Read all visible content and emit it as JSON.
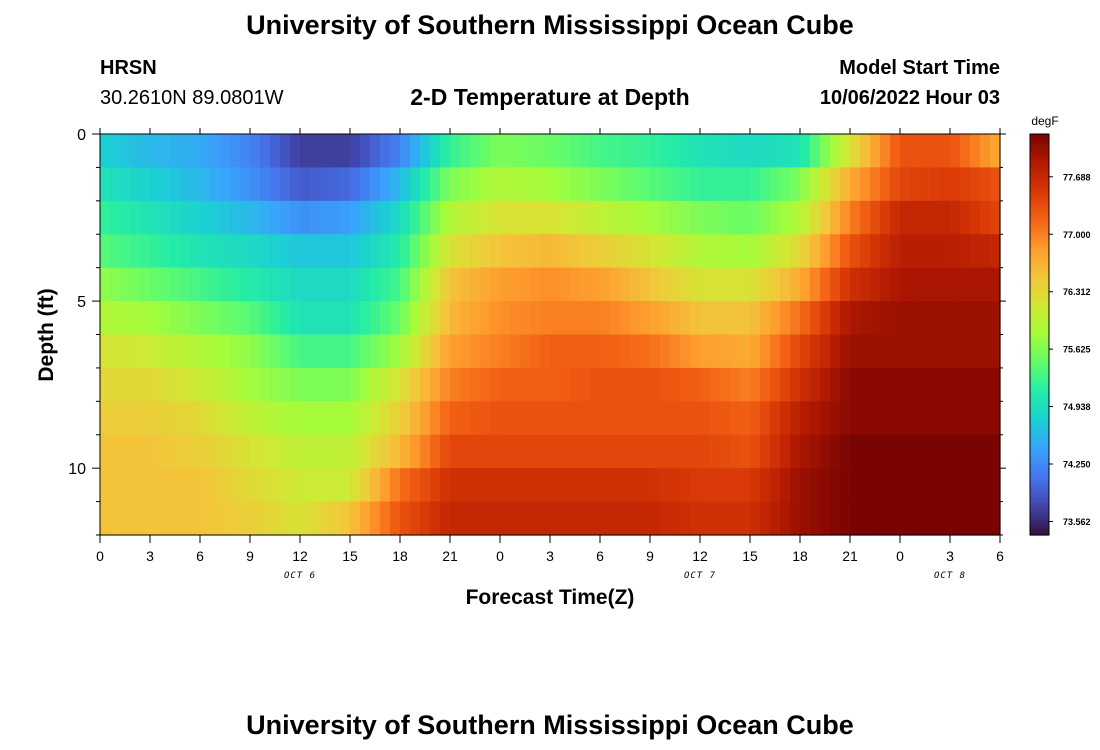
{
  "header": {
    "title": "University of Southern Mississippi Ocean Cube",
    "station": "HRSN",
    "location": "30.2610N  89.0801W",
    "subtitle": "2-D Temperature at Depth",
    "model_start_label": "Model Start Time",
    "model_start_value": "10/06/2022 Hour 03"
  },
  "footer": {
    "title": "University of Southern Mississippi Ocean Cube"
  },
  "chart_data": {
    "type": "heatmap",
    "title": "2-D Temperature at Depth",
    "xlabel": "Forecast Time(Z)",
    "ylabel": "Depth (ft)",
    "colorbar_unit": "degF",
    "x_tick_labels": [
      "0",
      "3",
      "6",
      "9",
      "12",
      "15",
      "18",
      "21",
      "0",
      "3",
      "6",
      "9",
      "12",
      "15",
      "18",
      "21",
      "0",
      "3",
      "6"
    ],
    "date_labels": [
      "OCT 6",
      "OCT 7",
      "OCT 8"
    ],
    "y_tick_labels": [
      "0",
      "5",
      "10"
    ],
    "x_range_hours": [
      0,
      54
    ],
    "y_range_ft": [
      0,
      12
    ],
    "depths_ft": [
      0,
      1,
      2,
      3,
      4,
      5,
      6,
      7,
      8,
      9,
      10,
      11
    ],
    "colorbar_ticks": [
      "77.688",
      "77.000",
      "76.312",
      "75.625",
      "74.938",
      "74.250",
      "73.562"
    ],
    "color_range": [
      73.4,
      78.2
    ],
    "colormap": [
      "#30123b",
      "#4145ab",
      "#4675ed",
      "#39a2fc",
      "#1bcfd4",
      "#24eca6",
      "#61fc6c",
      "#a4fc3b",
      "#d1e834",
      "#f3c63a",
      "#fe9b2d",
      "#f36315",
      "#d93806",
      "#b11901",
      "#7a0402"
    ],
    "temperature_keypoints_hours": [
      0,
      3,
      6,
      9,
      12,
      15,
      18,
      21,
      24,
      27,
      30,
      33,
      36,
      39,
      42,
      45,
      48,
      51,
      54
    ],
    "temperature_degF": [
      [
        74.8,
        74.6,
        74.5,
        74.2,
        73.7,
        73.7,
        74.2,
        75.2,
        75.6,
        75.5,
        75.3,
        75.2,
        75.0,
        74.9,
        75.0,
        76.2,
        77.3,
        77.3,
        76.7
      ],
      [
        75.0,
        74.8,
        74.6,
        74.3,
        73.9,
        74.0,
        74.6,
        75.6,
        75.9,
        75.8,
        75.6,
        75.4,
        75.2,
        75.2,
        75.6,
        76.7,
        77.4,
        77.5,
        77.3
      ],
      [
        75.2,
        75.0,
        74.8,
        74.6,
        74.3,
        74.4,
        74.9,
        75.9,
        76.2,
        76.2,
        76.0,
        75.8,
        75.6,
        75.5,
        75.9,
        77.0,
        77.7,
        77.7,
        77.4
      ],
      [
        75.4,
        75.2,
        75.0,
        74.9,
        74.7,
        74.7,
        75.1,
        76.2,
        76.5,
        76.6,
        76.4,
        76.2,
        75.9,
        75.8,
        76.3,
        77.3,
        77.8,
        77.8,
        77.7
      ],
      [
        75.7,
        75.5,
        75.3,
        75.1,
        74.9,
        74.9,
        75.3,
        76.5,
        76.8,
        76.9,
        76.8,
        76.5,
        76.2,
        76.2,
        76.7,
        77.6,
        77.9,
        77.9,
        77.9
      ],
      [
        75.9,
        75.8,
        75.6,
        75.4,
        75.0,
        75.0,
        75.5,
        76.6,
        76.9,
        77.0,
        77.0,
        76.8,
        76.5,
        76.5,
        77.1,
        77.9,
        78.0,
        78.0,
        78.0
      ],
      [
        76.2,
        76.1,
        75.9,
        75.7,
        75.3,
        75.3,
        75.8,
        76.8,
        77.0,
        77.2,
        77.2,
        77.1,
        76.8,
        76.7,
        77.4,
        78.0,
        78.0,
        78.0,
        78.0
      ],
      [
        76.3,
        76.3,
        76.1,
        75.8,
        75.6,
        75.6,
        76.2,
        77.0,
        77.2,
        77.2,
        77.3,
        77.3,
        77.2,
        77.0,
        77.6,
        78.1,
        78.1,
        78.1,
        78.1
      ],
      [
        76.4,
        76.4,
        76.3,
        76.0,
        75.8,
        75.8,
        76.4,
        77.2,
        77.3,
        77.3,
        77.3,
        77.3,
        77.3,
        77.2,
        77.8,
        78.1,
        78.1,
        78.1,
        78.1
      ],
      [
        76.5,
        76.5,
        76.4,
        76.2,
        76.0,
        76.0,
        76.6,
        77.4,
        77.4,
        77.4,
        77.4,
        77.4,
        77.4,
        77.3,
        77.9,
        78.2,
        78.2,
        78.2,
        78.2
      ],
      [
        76.5,
        76.5,
        76.5,
        76.3,
        76.1,
        76.1,
        77.1,
        77.6,
        77.6,
        77.6,
        77.6,
        77.6,
        77.5,
        77.5,
        78.0,
        78.2,
        78.2,
        78.2,
        78.2
      ],
      [
        76.5,
        76.5,
        76.5,
        76.4,
        76.2,
        76.5,
        77.3,
        77.7,
        77.7,
        77.7,
        77.7,
        77.7,
        77.6,
        77.6,
        78.0,
        78.2,
        78.2,
        78.2,
        78.2
      ]
    ]
  }
}
